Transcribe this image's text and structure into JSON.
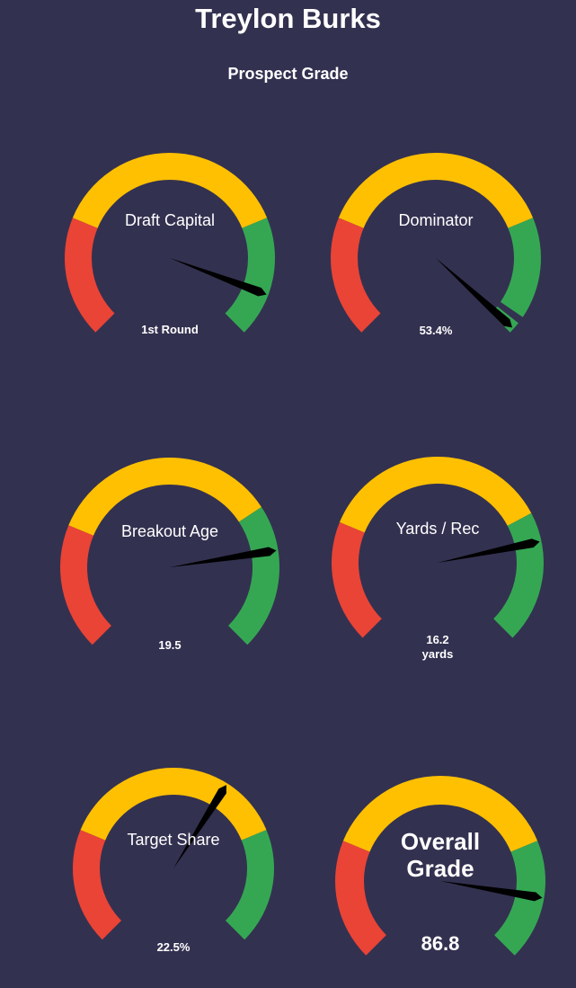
{
  "title": "Treylon Burks",
  "subtitle": "Prospect Grade",
  "colors": {
    "background": "#333150",
    "low": "#E94436",
    "mid": "#FFC002",
    "high": "#35A753",
    "needle": "#000000",
    "text": "#FFFFFF"
  },
  "chart_data": [
    {
      "type": "gauge",
      "label": "Draft Capital",
      "value_text": [
        "1st Round"
      ],
      "needle_fraction": 0.91,
      "bands": [
        {
          "color": "low",
          "from": 0,
          "to": 0.25
        },
        {
          "color": "mid",
          "from": 0.25,
          "to": 0.75
        },
        {
          "color": "high",
          "from": 0.75,
          "to": 1
        }
      ]
    },
    {
      "type": "gauge",
      "label": "Dominator",
      "value_text": [
        "53.4%"
      ],
      "needle_fraction": 0.99,
      "bands": [
        {
          "color": "low",
          "from": 0,
          "to": 0.25
        },
        {
          "color": "mid",
          "from": 0.25,
          "to": 0.75
        },
        {
          "color": "high",
          "from": 0.75,
          "to": 0.96
        },
        {
          "color": "high",
          "from": 0.975,
          "to": 1
        }
      ]
    },
    {
      "type": "gauge",
      "label": "Breakout Age",
      "value_text": [
        "19.5"
      ],
      "needle_fraction": 0.8,
      "bands": [
        {
          "color": "low",
          "from": 0,
          "to": 0.25
        },
        {
          "color": "mid",
          "from": 0.25,
          "to": 0.71
        },
        {
          "color": "high",
          "from": 0.71,
          "to": 1
        }
      ]
    },
    {
      "type": "gauge",
      "label": "Yards / Rec",
      "value_text": [
        "16.2",
        "yards"
      ],
      "needle_fraction": 0.79,
      "bands": [
        {
          "color": "low",
          "from": 0,
          "to": 0.25
        },
        {
          "color": "mid",
          "from": 0.25,
          "to": 0.73
        },
        {
          "color": "high",
          "from": 0.73,
          "to": 1
        }
      ]
    },
    {
      "type": "gauge",
      "label": "Target Share",
      "value_text": [
        "22.5%"
      ],
      "needle_fraction": 0.62,
      "bands": [
        {
          "color": "low",
          "from": 0,
          "to": 0.25
        },
        {
          "color": "mid",
          "from": 0.25,
          "to": 0.75
        },
        {
          "color": "high",
          "from": 0.75,
          "to": 1
        }
      ]
    },
    {
      "type": "gauge",
      "label": "Overall Grade",
      "label_lines": [
        "Overall",
        "Grade"
      ],
      "value_text": [
        "86.8"
      ],
      "needle_fraction": 0.868,
      "bands": [
        {
          "color": "low",
          "from": 0,
          "to": 0.25
        },
        {
          "color": "mid",
          "from": 0.25,
          "to": 0.75
        },
        {
          "color": "high",
          "from": 0.75,
          "to": 1
        }
      ]
    }
  ]
}
